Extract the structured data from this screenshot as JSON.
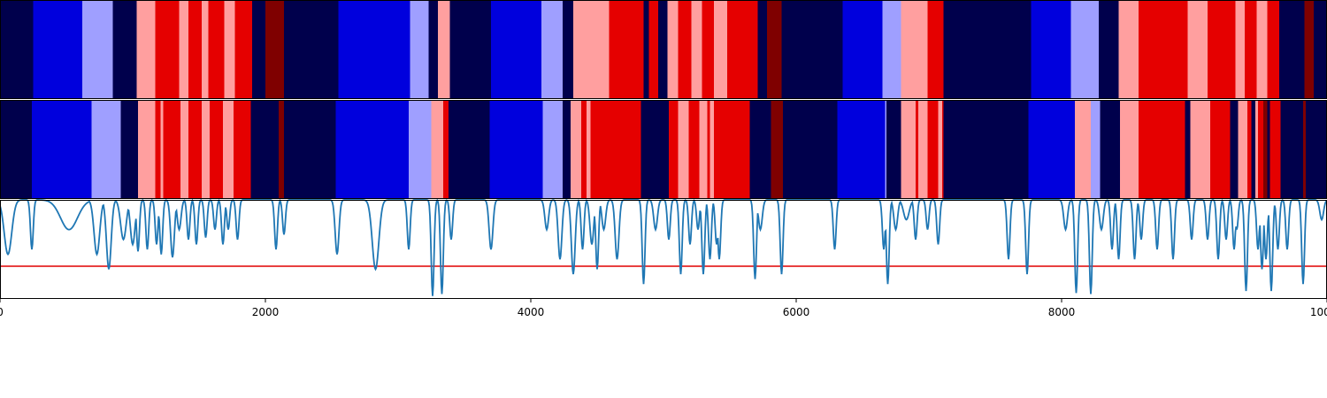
{
  "chart_data": {
    "type": "heatmap",
    "description_of_rows": [
      "segmentation strip (top)",
      "segmentation strip (bottom)",
      "confidence line trace"
    ],
    "xlim": [
      0,
      10000
    ],
    "xticks": [
      0,
      2000,
      4000,
      6000,
      8000,
      10000
    ],
    "xtick_labels": [
      "0",
      "2000",
      "4000",
      "6000",
      "8000",
      "10000"
    ],
    "palette": {
      "0": "#00004c",
      "1": "#0000dd",
      "2": "#9f9fff",
      "3": "#ff9f9f",
      "4": "#e50000",
      "5": "#7f0000"
    },
    "strips": [
      {
        "segments": [
          [
            0,
            250,
            0
          ],
          [
            250,
            620,
            1
          ],
          [
            620,
            850,
            2
          ],
          [
            850,
            1030,
            0
          ],
          [
            1030,
            1170,
            3
          ],
          [
            1170,
            1350,
            4
          ],
          [
            1350,
            1420,
            3
          ],
          [
            1420,
            1520,
            4
          ],
          [
            1520,
            1570,
            3
          ],
          [
            1570,
            1690,
            4
          ],
          [
            1690,
            1770,
            3
          ],
          [
            1770,
            1900,
            4
          ],
          [
            1900,
            2000,
            0
          ],
          [
            2000,
            2140,
            5
          ],
          [
            2140,
            2550,
            0
          ],
          [
            2550,
            3090,
            1
          ],
          [
            3090,
            3230,
            2
          ],
          [
            3230,
            3300,
            0
          ],
          [
            3300,
            3390,
            3
          ],
          [
            3390,
            3700,
            0
          ],
          [
            3700,
            4080,
            1
          ],
          [
            4080,
            4240,
            2
          ],
          [
            4240,
            4320,
            0
          ],
          [
            4320,
            4590,
            3
          ],
          [
            4590,
            4850,
            4
          ],
          [
            4850,
            4890,
            0
          ],
          [
            4890,
            4960,
            4
          ],
          [
            4960,
            5030,
            0
          ],
          [
            5030,
            5110,
            3
          ],
          [
            5110,
            5210,
            4
          ],
          [
            5210,
            5290,
            3
          ],
          [
            5290,
            5380,
            4
          ],
          [
            5380,
            5480,
            3
          ],
          [
            5480,
            5710,
            4
          ],
          [
            5710,
            5780,
            0
          ],
          [
            5780,
            5890,
            5
          ],
          [
            5890,
            6350,
            0
          ],
          [
            6350,
            6650,
            1
          ],
          [
            6650,
            6790,
            2
          ],
          [
            6790,
            6990,
            3
          ],
          [
            6990,
            7110,
            4
          ],
          [
            7110,
            7770,
            0
          ],
          [
            7770,
            8070,
            1
          ],
          [
            8070,
            8280,
            2
          ],
          [
            8280,
            8430,
            0
          ],
          [
            8430,
            8580,
            3
          ],
          [
            8580,
            8950,
            4
          ],
          [
            8950,
            9100,
            3
          ],
          [
            9100,
            9310,
            4
          ],
          [
            9310,
            9380,
            3
          ],
          [
            9380,
            9470,
            4
          ],
          [
            9470,
            9550,
            3
          ],
          [
            9550,
            9640,
            4
          ],
          [
            9640,
            9830,
            0
          ],
          [
            9830,
            9900,
            5
          ],
          [
            9900,
            10000,
            0
          ]
        ]
      },
      {
        "segments": [
          [
            0,
            240,
            0
          ],
          [
            240,
            690,
            1
          ],
          [
            690,
            910,
            2
          ],
          [
            910,
            1040,
            0
          ],
          [
            1040,
            1170,
            3
          ],
          [
            1170,
            1210,
            4
          ],
          [
            1210,
            1230,
            3
          ],
          [
            1230,
            1360,
            4
          ],
          [
            1360,
            1420,
            3
          ],
          [
            1420,
            1520,
            4
          ],
          [
            1520,
            1580,
            3
          ],
          [
            1580,
            1680,
            4
          ],
          [
            1680,
            1760,
            3
          ],
          [
            1760,
            1890,
            4
          ],
          [
            1890,
            2100,
            0
          ],
          [
            2100,
            2140,
            5
          ],
          [
            2140,
            2530,
            0
          ],
          [
            2530,
            3080,
            1
          ],
          [
            3080,
            3250,
            2
          ],
          [
            3250,
            3340,
            3
          ],
          [
            3340,
            3380,
            4
          ],
          [
            3380,
            3690,
            0
          ],
          [
            3690,
            4090,
            1
          ],
          [
            4090,
            4240,
            2
          ],
          [
            4240,
            4300,
            0
          ],
          [
            4300,
            4380,
            3
          ],
          [
            4380,
            4420,
            4
          ],
          [
            4420,
            4450,
            3
          ],
          [
            4450,
            4830,
            4
          ],
          [
            4830,
            5040,
            0
          ],
          [
            5040,
            5110,
            4
          ],
          [
            5110,
            5190,
            3
          ],
          [
            5190,
            5270,
            4
          ],
          [
            5270,
            5330,
            3
          ],
          [
            5330,
            5350,
            4
          ],
          [
            5350,
            5380,
            3
          ],
          [
            5380,
            5650,
            4
          ],
          [
            5650,
            5810,
            0
          ],
          [
            5810,
            5900,
            5
          ],
          [
            5900,
            6310,
            0
          ],
          [
            6310,
            6670,
            1
          ],
          [
            6670,
            6680,
            2
          ],
          [
            6680,
            6790,
            0
          ],
          [
            6790,
            6900,
            3
          ],
          [
            6900,
            6920,
            4
          ],
          [
            6920,
            6990,
            3
          ],
          [
            6990,
            7070,
            4
          ],
          [
            7070,
            7100,
            3
          ],
          [
            7100,
            7110,
            4
          ],
          [
            7110,
            7750,
            0
          ],
          [
            7750,
            8100,
            1
          ],
          [
            8100,
            8220,
            3
          ],
          [
            8220,
            8290,
            2
          ],
          [
            8290,
            8440,
            0
          ],
          [
            8440,
            8580,
            3
          ],
          [
            8580,
            8930,
            4
          ],
          [
            8930,
            8970,
            0
          ],
          [
            8970,
            9120,
            3
          ],
          [
            9120,
            9270,
            4
          ],
          [
            9270,
            9330,
            0
          ],
          [
            9330,
            9400,
            3
          ],
          [
            9400,
            9430,
            4
          ],
          [
            9430,
            9460,
            0
          ],
          [
            9460,
            9480,
            3
          ],
          [
            9480,
            9520,
            4
          ],
          [
            9520,
            9550,
            5
          ],
          [
            9550,
            9570,
            0
          ],
          [
            9570,
            9650,
            4
          ],
          [
            9650,
            9820,
            0
          ],
          [
            9820,
            9840,
            5
          ],
          [
            9840,
            10000,
            0
          ]
        ]
      }
    ],
    "line_series": {
      "color": "#1f77b4",
      "baseline": 1.0,
      "ylim": [
        0,
        1
      ],
      "threshold": {
        "value": 0.33,
        "color": "#e00000"
      },
      "dips": [
        [
          60,
          0.45,
          40
        ],
        [
          240,
          0.5,
          15
        ],
        [
          520,
          0.7,
          90
        ],
        [
          730,
          0.45,
          30
        ],
        [
          820,
          0.3,
          25
        ],
        [
          930,
          0.6,
          30
        ],
        [
          1000,
          0.55,
          25
        ],
        [
          1040,
          0.48,
          15
        ],
        [
          1110,
          0.5,
          15
        ],
        [
          1180,
          0.55,
          15
        ],
        [
          1215,
          0.45,
          15
        ],
        [
          1300,
          0.42,
          20
        ],
        [
          1350,
          0.7,
          20
        ],
        [
          1420,
          0.6,
          15
        ],
        [
          1480,
          0.55,
          15
        ],
        [
          1550,
          0.62,
          15
        ],
        [
          1620,
          0.7,
          15
        ],
        [
          1680,
          0.55,
          15
        ],
        [
          1720,
          0.7,
          15
        ],
        [
          1790,
          0.6,
          15
        ],
        [
          2080,
          0.5,
          15
        ],
        [
          2140,
          0.65,
          15
        ],
        [
          2540,
          0.45,
          20
        ],
        [
          2830,
          0.3,
          35
        ],
        [
          3080,
          0.5,
          15
        ],
        [
          3260,
          0.03,
          15
        ],
        [
          3330,
          0.05,
          15
        ],
        [
          3400,
          0.6,
          15
        ],
        [
          3700,
          0.5,
          20
        ],
        [
          4120,
          0.7,
          20
        ],
        [
          4220,
          0.4,
          20
        ],
        [
          4320,
          0.25,
          20
        ],
        [
          4390,
          0.5,
          15
        ],
        [
          4460,
          0.55,
          20
        ],
        [
          4500,
          0.3,
          15
        ],
        [
          4550,
          0.7,
          20
        ],
        [
          4650,
          0.4,
          20
        ],
        [
          4850,
          0.15,
          15
        ],
        [
          4940,
          0.7,
          20
        ],
        [
          5040,
          0.6,
          15
        ],
        [
          5130,
          0.25,
          15
        ],
        [
          5200,
          0.55,
          15
        ],
        [
          5260,
          0.7,
          15
        ],
        [
          5300,
          0.25,
          15
        ],
        [
          5350,
          0.4,
          15
        ],
        [
          5400,
          0.55,
          15
        ],
        [
          5420,
          0.4,
          15
        ],
        [
          5690,
          0.2,
          15
        ],
        [
          5730,
          0.7,
          20
        ],
        [
          5890,
          0.25,
          15
        ],
        [
          6290,
          0.5,
          15
        ],
        [
          6660,
          0.5,
          15
        ],
        [
          6690,
          0.15,
          15
        ],
        [
          6750,
          0.7,
          20
        ],
        [
          6830,
          0.8,
          30
        ],
        [
          6900,
          0.6,
          15
        ],
        [
          6990,
          0.7,
          15
        ],
        [
          7070,
          0.55,
          15
        ],
        [
          7600,
          0.4,
          15
        ],
        [
          7740,
          0.25,
          15
        ],
        [
          8030,
          0.7,
          20
        ],
        [
          8110,
          0.06,
          15
        ],
        [
          8220,
          0.05,
          15
        ],
        [
          8300,
          0.7,
          20
        ],
        [
          8380,
          0.5,
          15
        ],
        [
          8430,
          0.4,
          15
        ],
        [
          8550,
          0.4,
          15
        ],
        [
          8600,
          0.6,
          15
        ],
        [
          8720,
          0.5,
          15
        ],
        [
          8840,
          0.4,
          15
        ],
        [
          8980,
          0.6,
          15
        ],
        [
          9100,
          0.6,
          15
        ],
        [
          9180,
          0.4,
          15
        ],
        [
          9240,
          0.6,
          15
        ],
        [
          9300,
          0.5,
          15
        ],
        [
          9320,
          0.7,
          15
        ],
        [
          9390,
          0.08,
          15
        ],
        [
          9480,
          0.5,
          15
        ],
        [
          9510,
          0.3,
          15
        ],
        [
          9540,
          0.4,
          15
        ],
        [
          9580,
          0.08,
          15
        ],
        [
          9630,
          0.5,
          15
        ],
        [
          9700,
          0.5,
          15
        ],
        [
          9820,
          0.15,
          15
        ],
        [
          9960,
          0.8,
          20
        ]
      ]
    }
  }
}
